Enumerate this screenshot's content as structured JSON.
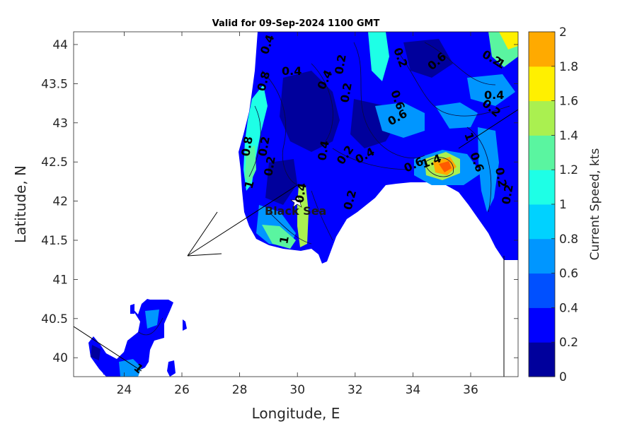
{
  "title": "Valid for 09-Sep-2024 1100 GMT",
  "xlabel": "Longitude, E",
  "ylabel": "Latitude, N",
  "colorbar_label": "Current Speed, kts",
  "place_label": "Black Sea",
  "x_ticks": [
    "24",
    "26",
    "28",
    "30",
    "32",
    "34",
    "36"
  ],
  "y_ticks": [
    "44",
    "43.5",
    "43",
    "42.5",
    "42",
    "41.5",
    "41",
    "40.5",
    "40"
  ],
  "colorbar_ticks": [
    "2",
    "1.8",
    "1.6",
    "1.4",
    "1.2",
    "1",
    "0.8",
    "0.6",
    "0.4",
    "0.2",
    "0"
  ],
  "colorbar_colors": [
    "#00009c",
    "#0000ff",
    "#0050ff",
    "#0096ff",
    "#00d2ff",
    "#1effe6",
    "#5af5a0",
    "#aaf050",
    "#fff000",
    "#ffaa00",
    "#ff5a00"
  ],
  "contour_labels": [
    "0.4",
    "0.4",
    "0.8",
    "0.4",
    "0.2",
    "0.2",
    "0.6",
    "0.2",
    "0.6",
    "0.4",
    "0.2",
    "1",
    "0.8",
    "0.2",
    "0.2",
    "1",
    "0.4",
    "0.2",
    "0.4",
    "0.6",
    "0.6",
    "1.4",
    "1",
    "0.6",
    "0.2",
    "0.4",
    "0.2",
    "0.2",
    "1",
    "1",
    "0.2"
  ],
  "chart_data": {
    "type": "heatmap",
    "title": "Valid for 09-Sep-2024 1100 GMT",
    "xlabel": "Longitude, E",
    "ylabel": "Latitude, N",
    "xlim": [
      22.2,
      37.6
    ],
    "ylim": [
      39.75,
      44.15
    ],
    "colorbar": {
      "label": "Current Speed, kts",
      "min": 0,
      "max": 2,
      "step": 0.2
    },
    "annotations": [
      "Black Sea"
    ],
    "description_values": {
      "max_speed_region_kts": 1.8,
      "max_speed_location": [
        35.2,
        42.4
      ]
    }
  }
}
